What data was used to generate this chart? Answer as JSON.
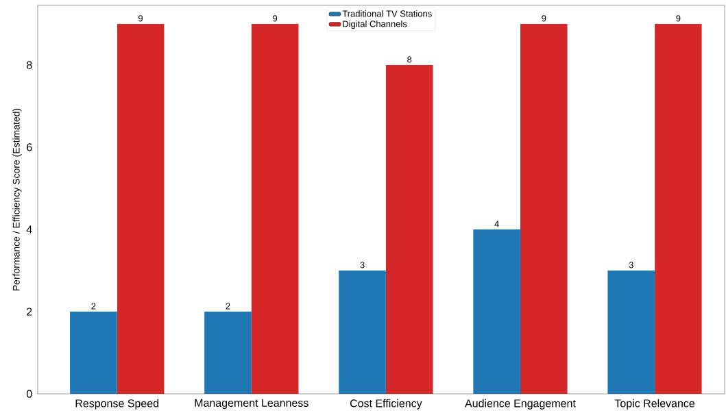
{
  "chart_data": {
    "type": "bar",
    "ylabel": "Performance / Efficiency Score (Estimated)",
    "categories": [
      "Response Speed",
      "Management Leanness",
      "Cost Efficiency",
      "Audience Engagement",
      "Topic Relevance"
    ],
    "series": [
      {
        "name": "Traditional TV Stations",
        "color": "#1f77b4",
        "values": [
          2,
          2,
          3,
          4,
          3
        ]
      },
      {
        "name": "Digital Channels",
        "color": "#d62728",
        "values": [
          9,
          9,
          8,
          9,
          9
        ]
      }
    ],
    "ylim": [
      0,
      9.45
    ],
    "yticks": [
      0,
      2,
      4,
      6,
      8
    ],
    "grid": false,
    "legend": "top",
    "data_labels": true
  }
}
